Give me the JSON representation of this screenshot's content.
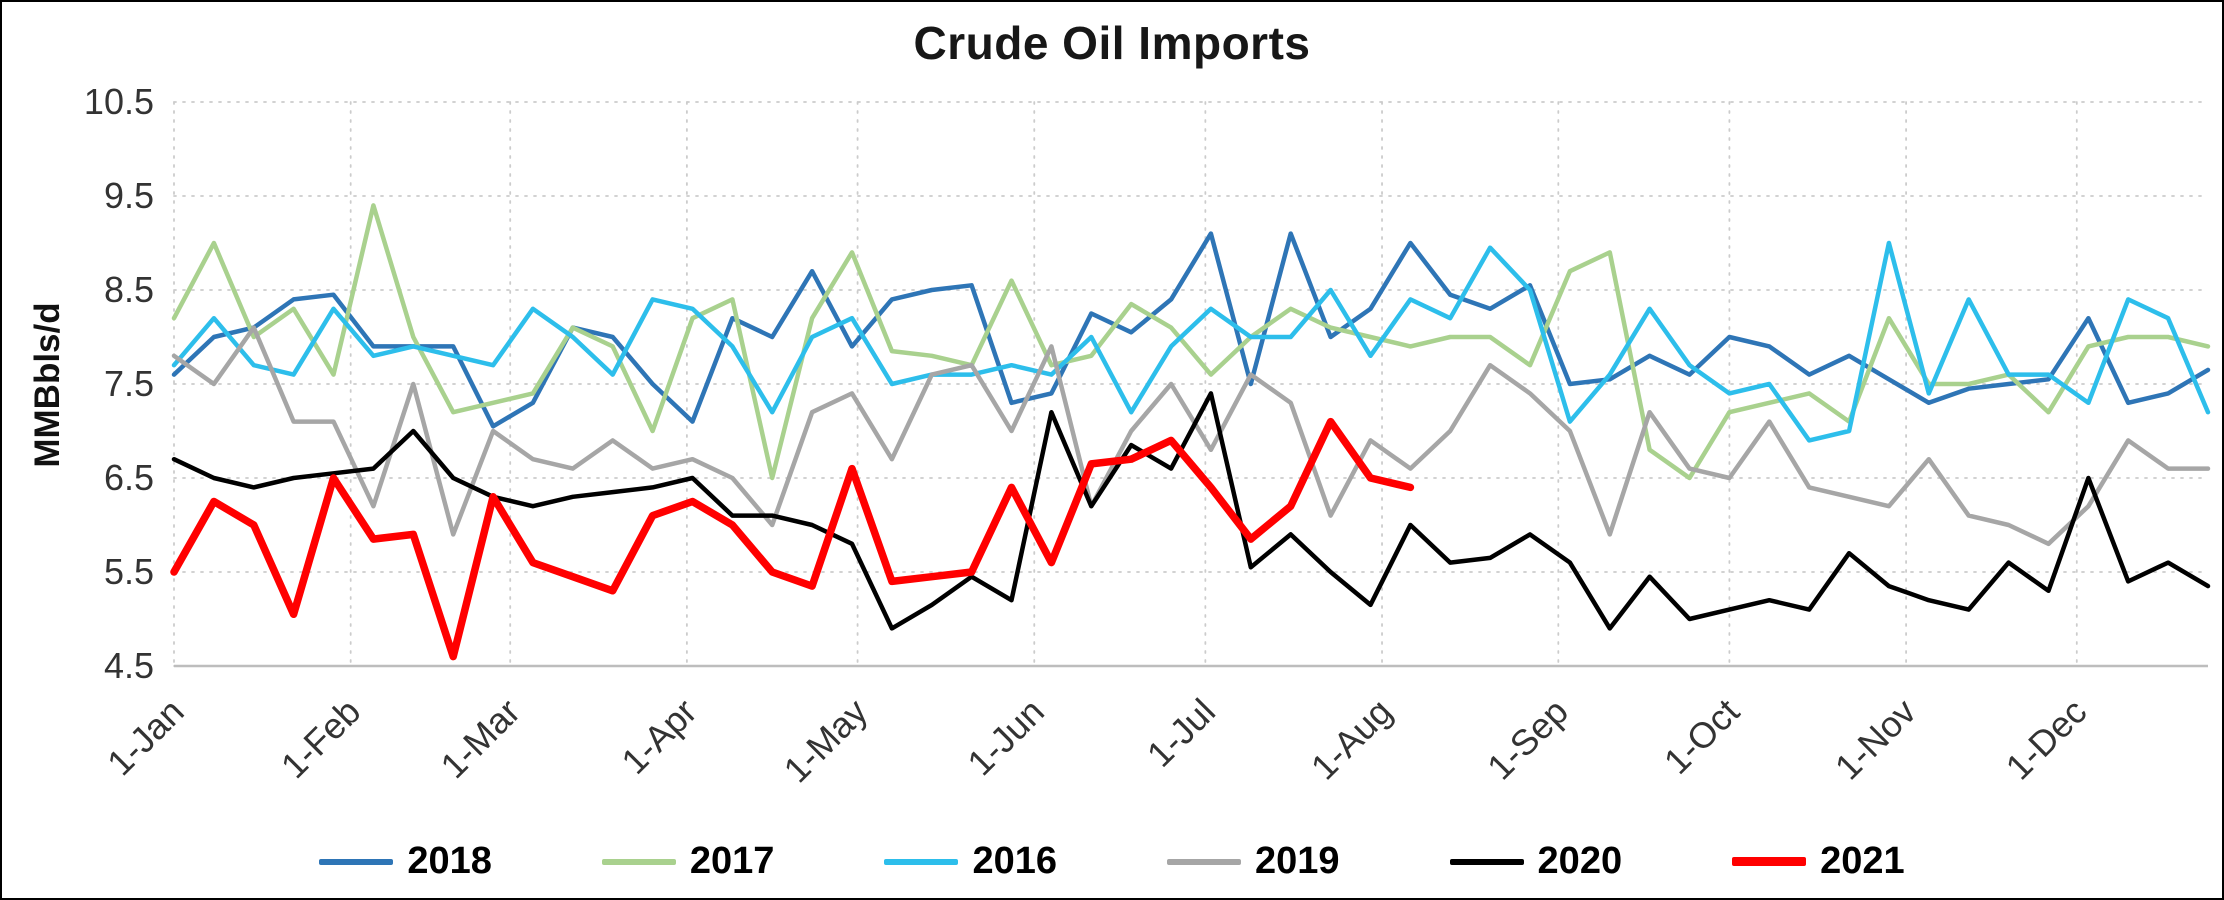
{
  "title": "Crude Oil Imports",
  "y_axis_label": "MMBbls/d",
  "chart_data": {
    "type": "line",
    "title": "Crude Oil Imports",
    "xlabel": "",
    "ylabel": "MMBbls/d",
    "ylim": [
      4.5,
      10.5
    ],
    "y_ticks": [
      10.5,
      9.5,
      8.5,
      7.5,
      6.5,
      5.5,
      4.5
    ],
    "grid": "dotted horizontal and vertical gridlines",
    "legend_position": "bottom",
    "x_unit": "week of year",
    "x_range_weeks": [
      0,
      51
    ],
    "x_ticks": [
      {
        "label": "1-Jan",
        "week": 0
      },
      {
        "label": "1-Feb",
        "week": 4.43
      },
      {
        "label": "1-Mar",
        "week": 8.43
      },
      {
        "label": "1-Apr",
        "week": 12.86
      },
      {
        "label": "1-May",
        "week": 17.14
      },
      {
        "label": "1-Jun",
        "week": 21.57
      },
      {
        "label": "1-Jul",
        "week": 25.86
      },
      {
        "label": "1-Aug",
        "week": 30.29
      },
      {
        "label": "1-Sep",
        "week": 34.71
      },
      {
        "label": "1-Oct",
        "week": 39
      },
      {
        "label": "1-Nov",
        "week": 43.43
      },
      {
        "label": "1-Dec",
        "week": 47.71
      }
    ],
    "series": [
      {
        "name": "2018",
        "color": "#2E75B6",
        "line_width": 4.5,
        "values": [
          7.6,
          8.0,
          8.1,
          8.4,
          8.45,
          7.9,
          7.9,
          7.9,
          7.05,
          7.3,
          8.1,
          8.0,
          7.5,
          7.1,
          8.2,
          8.0,
          8.7,
          7.9,
          8.4,
          8.5,
          8.55,
          7.3,
          7.4,
          8.25,
          8.05,
          8.4,
          9.1,
          7.5,
          9.1,
          8.0,
          8.3,
          9.0,
          8.45,
          8.3,
          8.55,
          7.5,
          7.55,
          7.8,
          7.6,
          8.0,
          7.9,
          7.6,
          7.8,
          7.55,
          7.3,
          7.45,
          7.5,
          7.55,
          8.2,
          7.3,
          7.4,
          7.65
        ]
      },
      {
        "name": "2017",
        "color": "#A9D18E",
        "line_width": 4.5,
        "values": [
          8.2,
          9.0,
          8.0,
          8.3,
          7.6,
          9.4,
          8.0,
          7.2,
          7.3,
          7.4,
          8.1,
          7.9,
          7.0,
          8.2,
          8.4,
          6.5,
          8.2,
          8.9,
          7.85,
          7.8,
          7.7,
          8.6,
          7.7,
          7.8,
          8.35,
          8.1,
          7.6,
          8.0,
          8.3,
          8.1,
          8.0,
          7.9,
          8.0,
          8.0,
          7.7,
          8.7,
          8.9,
          6.8,
          6.5,
          7.2,
          7.3,
          7.4,
          7.1,
          8.2,
          7.5,
          7.5,
          7.6,
          7.2,
          7.9,
          8.0,
          8.0,
          7.9
        ]
      },
      {
        "name": "2016",
        "color": "#2DBEEB",
        "line_width": 4.5,
        "values": [
          7.7,
          8.2,
          7.7,
          7.6,
          8.3,
          7.8,
          7.9,
          7.8,
          7.7,
          8.3,
          8.0,
          7.6,
          8.4,
          8.3,
          7.9,
          7.2,
          8.0,
          8.2,
          7.5,
          7.6,
          7.6,
          7.7,
          7.6,
          8.0,
          7.2,
          7.9,
          8.3,
          8.0,
          8.0,
          8.5,
          7.8,
          8.4,
          8.2,
          8.95,
          8.5,
          7.1,
          7.6,
          8.3,
          7.7,
          7.4,
          7.5,
          6.9,
          7.0,
          9.0,
          7.4,
          8.4,
          7.6,
          7.6,
          7.3,
          8.4,
          8.2,
          7.2
        ]
      },
      {
        "name": "2019",
        "color": "#A6A6A6",
        "line_width": 4.5,
        "values": [
          7.8,
          7.5,
          8.1,
          7.1,
          7.1,
          6.2,
          7.5,
          5.9,
          7.0,
          6.7,
          6.6,
          6.9,
          6.6,
          6.7,
          6.5,
          6.0,
          7.2,
          7.4,
          6.7,
          7.6,
          7.7,
          7.0,
          7.9,
          6.2,
          7.0,
          7.5,
          6.8,
          7.6,
          7.3,
          6.1,
          6.9,
          6.6,
          7.0,
          7.7,
          7.4,
          7.0,
          5.9,
          7.2,
          6.6,
          6.5,
          7.1,
          6.4,
          6.3,
          6.2,
          6.7,
          6.1,
          6.0,
          5.8,
          6.2,
          6.9,
          6.6,
          6.6
        ]
      },
      {
        "name": "2020",
        "color": "#000000",
        "line_width": 4.5,
        "values": [
          6.7,
          6.5,
          6.4,
          6.5,
          6.55,
          6.6,
          7.0,
          6.5,
          6.3,
          6.2,
          6.3,
          6.35,
          6.4,
          6.5,
          6.1,
          6.1,
          6.0,
          5.8,
          4.9,
          5.15,
          5.45,
          5.2,
          7.2,
          6.2,
          6.85,
          6.6,
          7.4,
          5.55,
          5.9,
          5.5,
          5.15,
          6.0,
          5.6,
          5.65,
          5.9,
          5.6,
          4.9,
          5.45,
          5.0,
          5.1,
          5.2,
          5.1,
          5.7,
          5.35,
          5.2,
          5.1,
          5.6,
          5.3,
          6.5,
          5.4,
          5.6,
          5.35
        ]
      },
      {
        "name": "2021",
        "color": "#FF0000",
        "line_width": 7.5,
        "values": [
          5.5,
          6.25,
          6.0,
          5.05,
          6.5,
          5.85,
          5.9,
          4.6,
          6.3,
          5.6,
          5.45,
          5.3,
          6.1,
          6.25,
          6.0,
          5.5,
          5.35,
          6.6,
          5.4,
          5.45,
          5.5,
          6.4,
          5.6,
          6.65,
          6.7,
          6.9,
          6.4,
          5.85,
          6.2,
          7.1,
          6.5,
          6.4
        ]
      }
    ]
  }
}
